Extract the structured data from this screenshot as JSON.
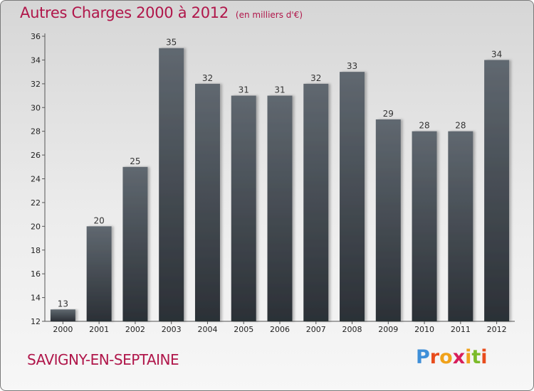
{
  "header": {
    "title": "Autres Charges 2000 à 2012",
    "subtitle": "(en milliers d'€)"
  },
  "footer": {
    "commune": "SAVIGNY-EN-SEPTAINE",
    "logo_text": "Proxiti",
    "logo_colors": [
      "#3f8fd8",
      "#e84c1c",
      "#f0a21b",
      "#d81e5b",
      "#f0a21b",
      "#7cbb2a",
      "#e84c1c"
    ]
  },
  "chart_data": {
    "type": "bar",
    "categories": [
      "2000",
      "2001",
      "2002",
      "2003",
      "2004",
      "2005",
      "2006",
      "2007",
      "2008",
      "2009",
      "2010",
      "2011",
      "2012"
    ],
    "values": [
      13,
      20,
      25,
      35,
      32,
      31,
      31,
      32,
      33,
      29,
      28,
      28,
      34
    ],
    "title": "Autres Charges 2000 à 2012",
    "subtitle": "(en milliers d'€)",
    "xlabel": "",
    "ylabel": "",
    "ylim": [
      12,
      36
    ],
    "yticks": [
      12,
      14,
      16,
      18,
      20,
      22,
      24,
      26,
      28,
      30,
      32,
      34,
      36
    ],
    "grid": false,
    "legend": "none",
    "bar_color": "#3b4148"
  }
}
